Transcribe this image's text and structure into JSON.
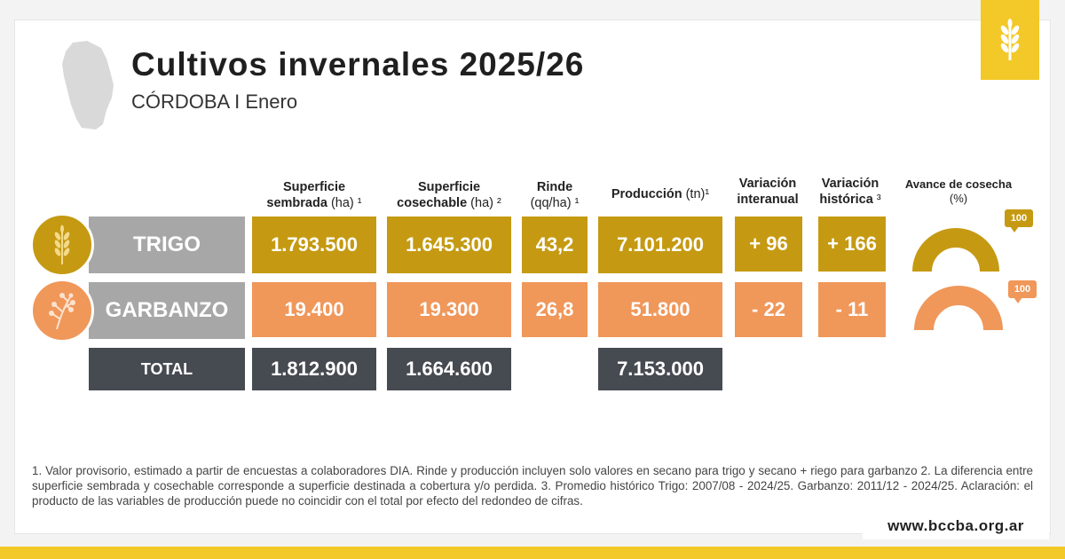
{
  "header": {
    "title": "Cultivos invernales 2025/26",
    "subtitle": "CÓRDOBA I Enero"
  },
  "columns": [
    {
      "main": "Superficie",
      "line2": "sembrada",
      "unit": " (ha) ¹"
    },
    {
      "main": "Superficie",
      "line2": "cosechable",
      "unit": " (ha) ²"
    },
    {
      "main": "Rinde",
      "line2": "",
      "unit": "(qq/ha) ¹"
    },
    {
      "main": "Producción",
      "line2": "",
      "unit": " (tn)¹"
    },
    {
      "main": "Variación",
      "line2": "interanual",
      "unit": ""
    },
    {
      "main": "Variación",
      "line2": "histórica",
      "unit": " ³"
    },
    {
      "main": "Avance de cosecha",
      "line2": "",
      "unit": "(%)"
    }
  ],
  "rows": {
    "trigo": {
      "label": "TRIGO",
      "icon": "wheat-icon",
      "color": "#c59a12",
      "superficie_sembrada": "1.793.500",
      "superficie_cosechable": "1.645.300",
      "rinde": "43,2",
      "produccion": "7.101.200",
      "variacion_interanual": "+ 96",
      "variacion_historica": "+ 166",
      "avance_cosecha": "100",
      "avance_value": 100
    },
    "garbanzo": {
      "label": "GARBANZO",
      "icon": "chickpea-plant-icon",
      "color": "#f0975a",
      "superficie_sembrada": "19.400",
      "superficie_cosechable": "19.300",
      "rinde": "26,8",
      "produccion": "51.800",
      "variacion_interanual": "- 22",
      "variacion_historica": "- 11",
      "avance_cosecha": "100",
      "avance_value": 100
    },
    "total": {
      "label": "TOTAL",
      "superficie_sembrada": "1.812.900",
      "superficie_cosechable": "1.664.600",
      "produccion": "7.153.000"
    }
  },
  "footnote": "1. Valor provisorio, estimado a partir de encuestas a colaboradores DIA. Rinde y producción incluyen solo valores en secano para trigo y secano + riego para garbanzo 2. La diferencia entre superficie sembrada y cosechable corresponde a superficie destinada a cobertura y/o perdida. 3. Promedio histórico Trigo: 2007/08 - 2024/25. Garbanzo: 2011/12 - 2024/25. Aclaración: el producto de las variables de producción puede no coincidir con el total por efecto del redondeo de cifras.",
  "url": "www.bccba.org.ar",
  "colors": {
    "accent": "#f3c829",
    "trigo": "#c59a12",
    "garbanzo": "#f0975a",
    "total": "#464a51",
    "label_gray": "#a7a7a7"
  }
}
